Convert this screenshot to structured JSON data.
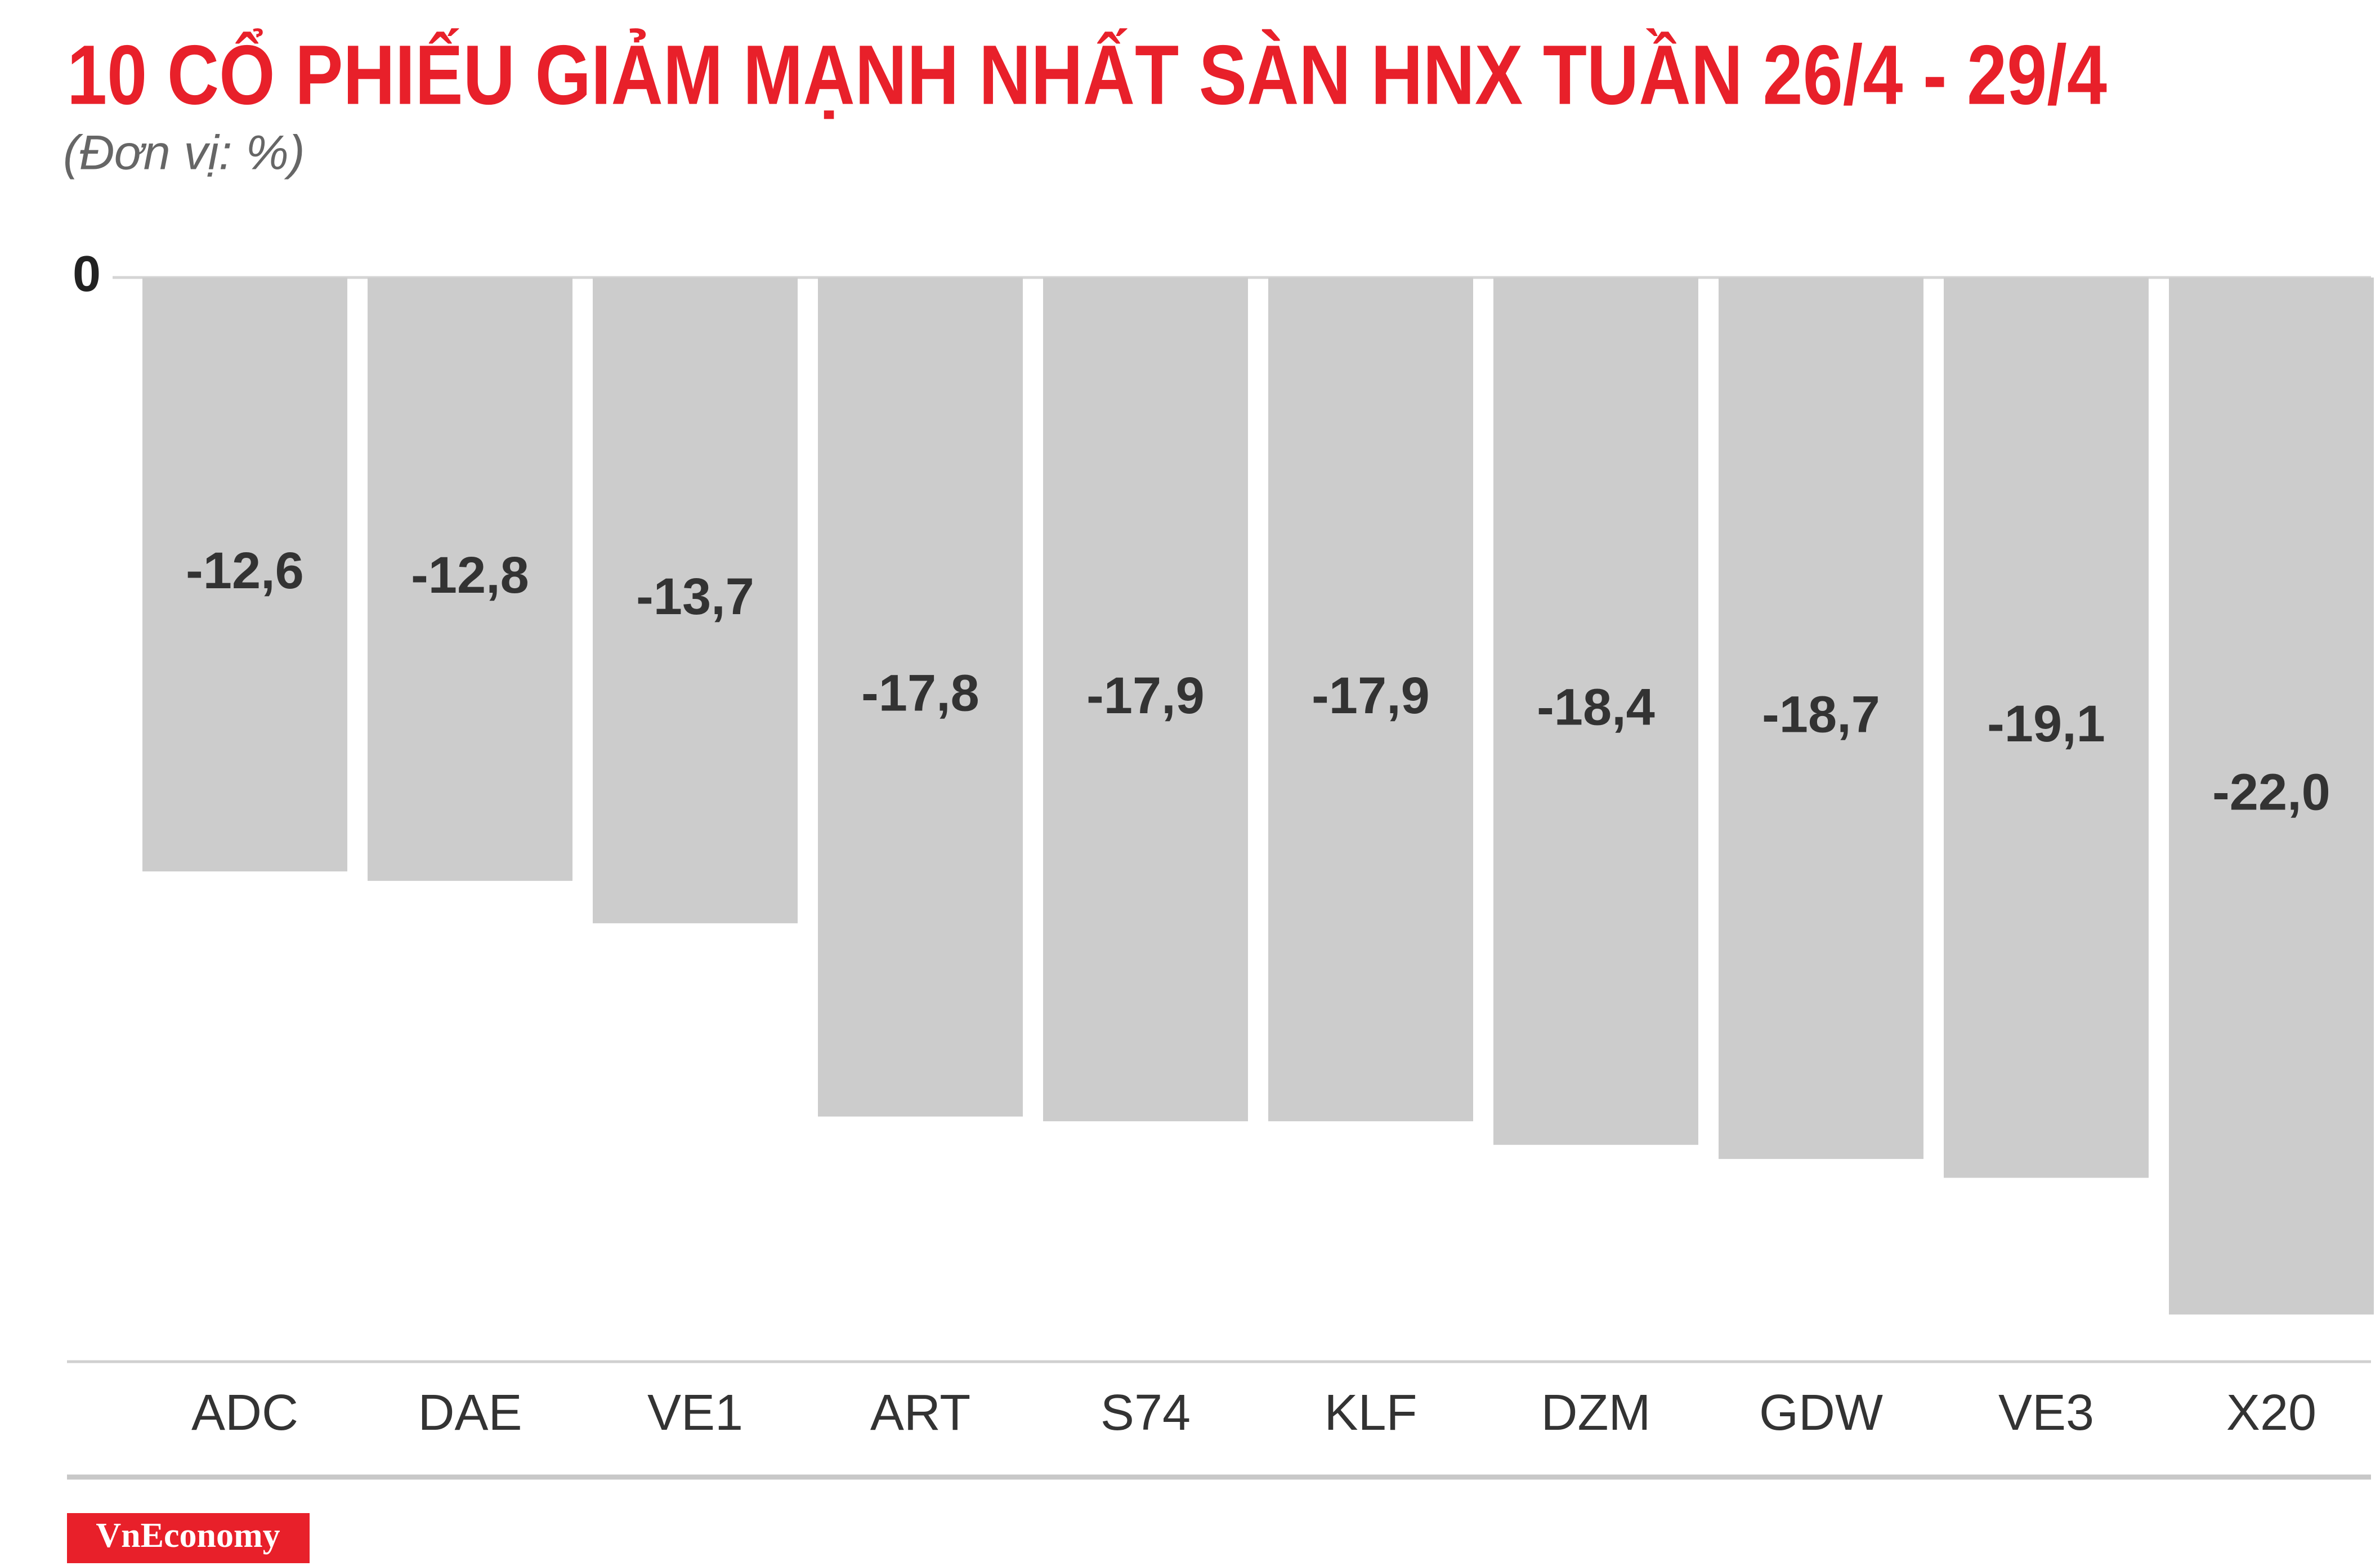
{
  "chart_data": {
    "type": "bar",
    "title": "10 CỔ PHIẾU GIẢM MẠNH NHẤT SÀN HNX TUẦN 26/4 - 29/4",
    "subtitle": "(Đơn vị: %)",
    "categories": [
      "ADC",
      "DAE",
      "VE1",
      "ART",
      "S74",
      "KLF",
      "DZM",
      "GDW",
      "VE3",
      "X20"
    ],
    "values": [
      -12.6,
      -12.8,
      -13.7,
      -17.8,
      -17.9,
      -17.9,
      -18.4,
      -18.7,
      -19.1,
      -22.0
    ],
    "value_labels": [
      "-12,6",
      "-12,8",
      "-13,7",
      "-17,8",
      "-17,9",
      "-17,9",
      "-18,4",
      "-18,7",
      "-19,1",
      "-22,0"
    ],
    "color": "#cccccc",
    "ylim": [
      -23,
      0
    ],
    "yticks": [
      0
    ]
  },
  "brand": "VnEconomy"
}
